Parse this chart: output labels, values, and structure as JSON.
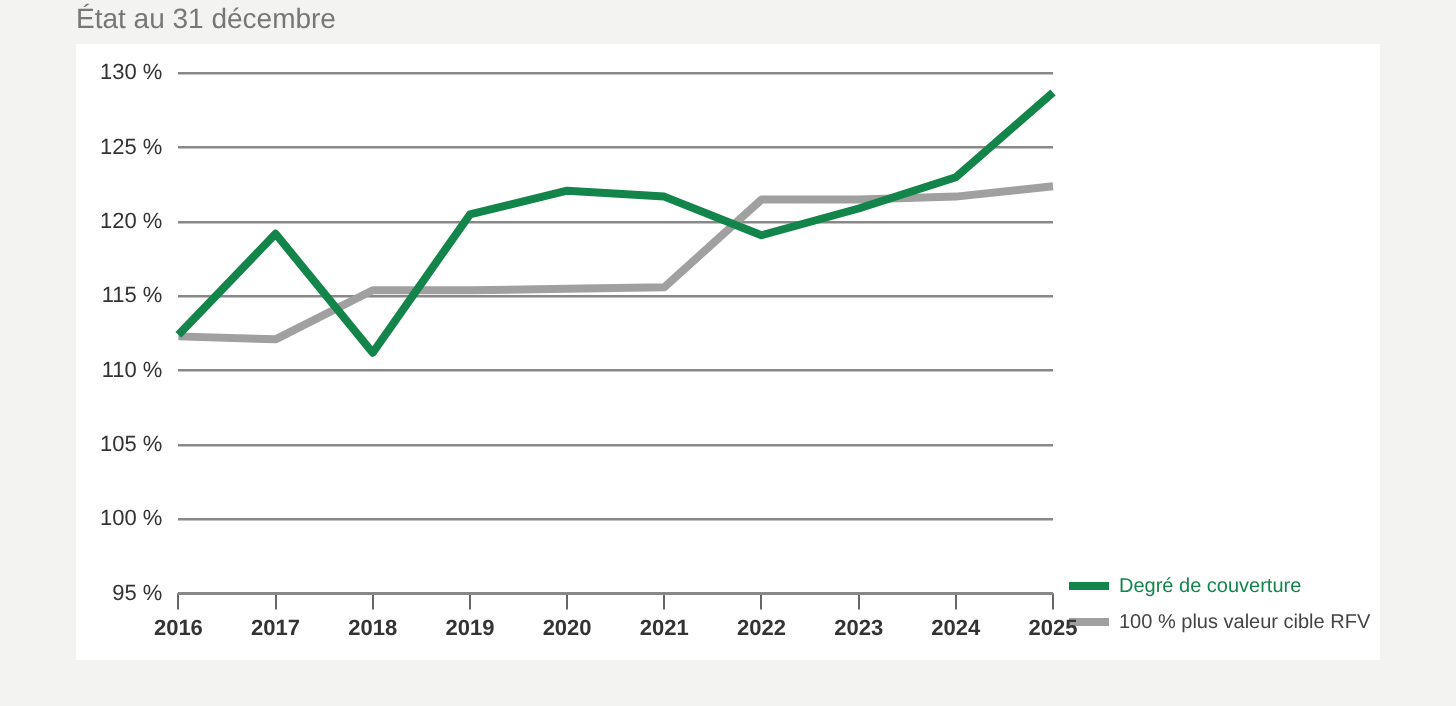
{
  "chart_data": {
    "type": "line",
    "title": "État au 31 décembre",
    "categories": [
      "2016",
      "2017",
      "2018",
      "2019",
      "2020",
      "2021",
      "2022",
      "2023",
      "2024",
      "2025"
    ],
    "series": [
      {
        "name": "Degré de couverture",
        "color": "#13854a",
        "values": [
          112.4,
          119.2,
          111.2,
          120.5,
          122.1,
          121.7,
          119.1,
          120.9,
          123.0,
          128.7
        ]
      },
      {
        "name": "100 % plus valeur cible RFV",
        "color": "#a0a0a0",
        "values": [
          112.3,
          112.1,
          115.4,
          115.4,
          115.5,
          115.6,
          121.5,
          121.5,
          121.7,
          122.4
        ]
      }
    ],
    "ylim": [
      95,
      130
    ],
    "yticks": [
      {
        "value": 95,
        "label": "95 %"
      },
      {
        "value": 100,
        "label": "100 %"
      },
      {
        "value": 105,
        "label": "105 %"
      },
      {
        "value": 110,
        "label": "110 %"
      },
      {
        "value": 115,
        "label": "115 %"
      },
      {
        "value": 120,
        "label": "120 %"
      },
      {
        "value": 125,
        "label": "125 %"
      },
      {
        "value": 130,
        "label": "130 %"
      }
    ],
    "grid": "y",
    "legend": "bottom right",
    "marker": "none",
    "line_style": "solid"
  }
}
